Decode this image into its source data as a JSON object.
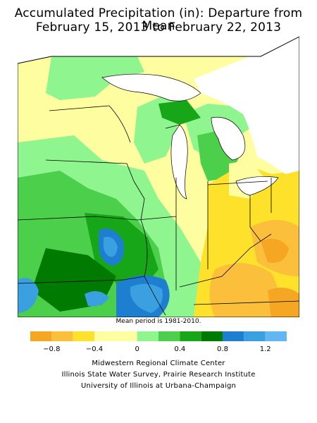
{
  "title_line1": "Accumulated Precipitation (in): Departure from Mean",
  "title_line2": "February 15, 2013 to February 22, 2013",
  "mean_note": "Mean period is 1981-2010.",
  "legend": {
    "colors": [
      "#f5a623",
      "#fbbf3c",
      "#fde12a",
      "#fefea0",
      "#fefea0",
      "#8ff58f",
      "#4cd04c",
      "#17a617",
      "#007a00",
      "#1e7fd0",
      "#3aa0e0",
      "#62b6f2"
    ],
    "tick_labels": [
      "−0.8",
      "−0.4",
      "0",
      "0.4",
      "0.8",
      "1.2"
    ],
    "tick_values": [
      -0.8,
      -0.4,
      0,
      0.4,
      0.8,
      1.2
    ],
    "range": [
      -1.0,
      1.4
    ]
  },
  "credits": {
    "line1": "Midwestern Regional Climate Center",
    "line2": "Illinois State Water Survey, Prairie Research Institute",
    "line3": "University of Illinois at Urbana-Champaign"
  }
}
